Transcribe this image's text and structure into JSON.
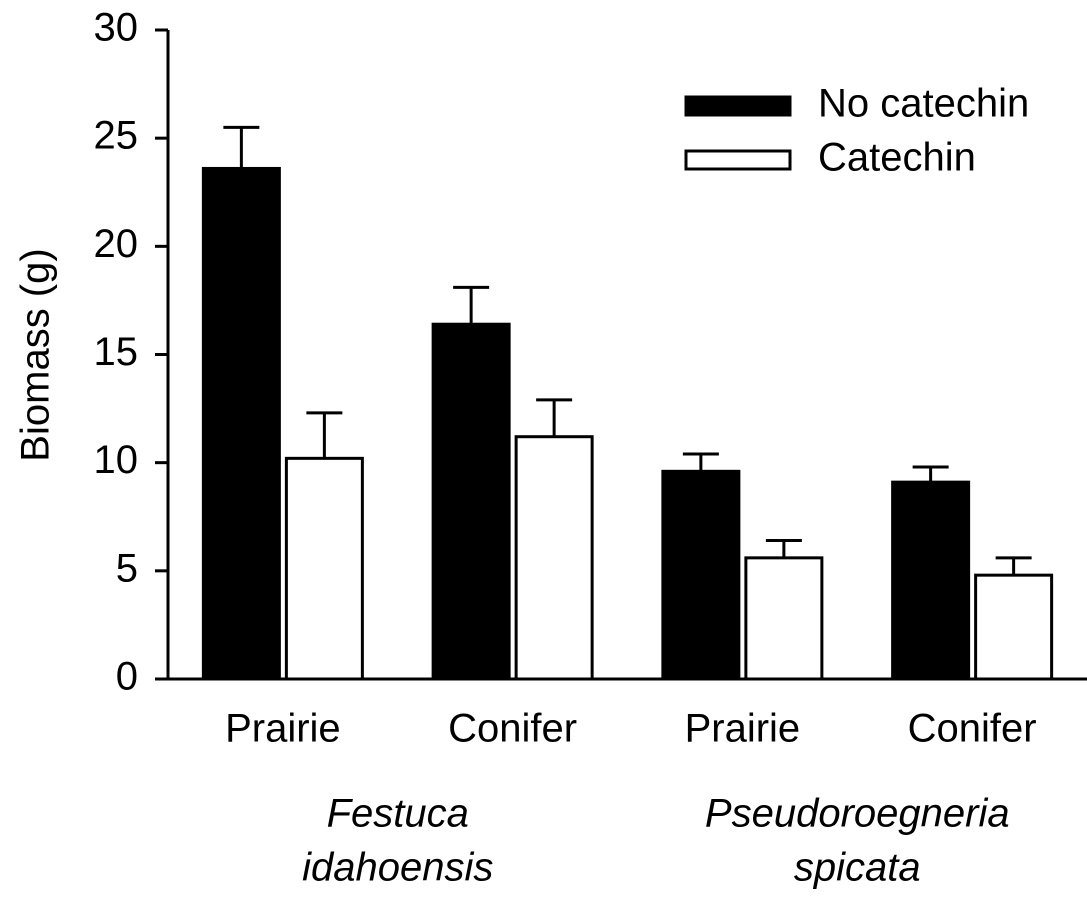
{
  "chart_data": {
    "type": "bar",
    "y_label": "Biomass (g)",
    "categories": [
      "Prairie",
      "Conifer",
      "Prairie",
      "Conifer"
    ],
    "groups": [
      {
        "lines": [
          "Festuca",
          "idahoensis"
        ]
      },
      {
        "lines": [
          "Pseudoroegneria",
          "spicata"
        ]
      }
    ],
    "series": [
      {
        "name": "No catechin",
        "color": "#000000",
        "values": [
          23.6,
          16.4,
          9.6,
          9.1
        ],
        "errors": [
          1.9,
          1.7,
          0.8,
          0.7
        ]
      },
      {
        "name": "Catechin",
        "color": "#ffffff",
        "values": [
          10.2,
          11.2,
          5.6,
          4.8
        ],
        "errors": [
          2.1,
          1.7,
          0.8,
          0.8
        ]
      }
    ],
    "ylim": [
      0,
      30
    ],
    "yticks": [
      0,
      5,
      10,
      15,
      20,
      25,
      30
    ],
    "legend": "upper right",
    "grid": false
  }
}
